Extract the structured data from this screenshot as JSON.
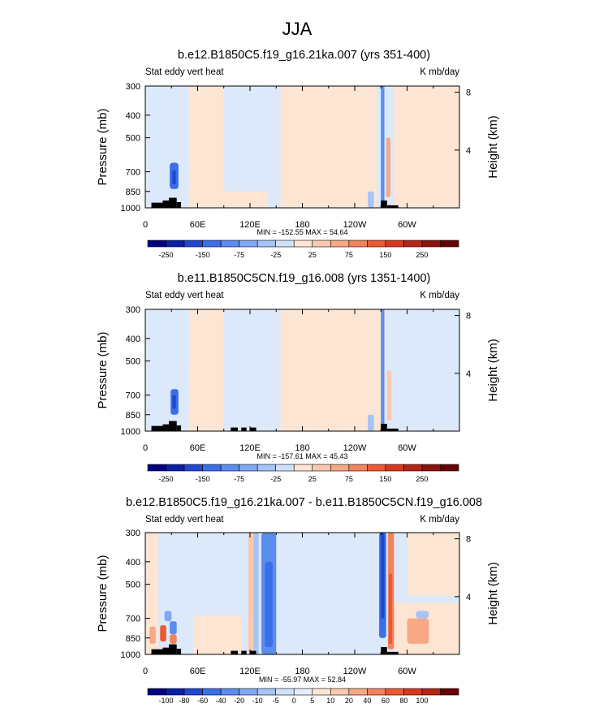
{
  "figure": {
    "title": "JJA"
  },
  "x_ticks": [
    "0",
    "60E",
    "120E",
    "180",
    "120W",
    "60W"
  ],
  "p_ticks": [
    "300",
    "400",
    "500",
    "700",
    "850",
    "1000"
  ],
  "h_ticks": [
    "8",
    "4"
  ],
  "colors": {
    "bg_above_25": "#fde5d3",
    "bg_below_25": "#dce9fb",
    "land": "#000000"
  },
  "chart_data": [
    {
      "type": "heatmap",
      "title": "b.e12.B1850C5.f19_g16.21ka.007 (yrs 351-400)",
      "left_label": "Stat eddy vert heat",
      "right_label": "K mb/day",
      "ylabel": "Pressure (mb)",
      "ylabel_right": "Height (km)",
      "xlim": [
        0,
        360
      ],
      "plim": [
        1000,
        300
      ],
      "stats": "MIN = -152.55  MAX =  54.64",
      "colorbar": {
        "labels": [
          "-250",
          "-150",
          "-75",
          "-25",
          "25",
          "75",
          "150",
          "250"
        ],
        "colors": [
          "#00007f",
          "#0a1fa5",
          "#1f48cf",
          "#3a6fe8",
          "#5b8df0",
          "#7fa8f5",
          "#a6c4f9",
          "#d0e1fc",
          "#fde5d3",
          "#fbc9ae",
          "#f7a884",
          "#f2845d",
          "#ea5a33",
          "#d53a1f",
          "#b32514",
          "#8c1309",
          "#660000"
        ]
      },
      "features": [
        {
          "x": [
            0,
            50
          ],
          "p": [
            300,
            1000
          ],
          "c": "#dce9fb"
        },
        {
          "x": [
            50,
            90
          ],
          "p": [
            300,
            1000
          ],
          "c": "#fde5d3"
        },
        {
          "x": [
            90,
            140
          ],
          "p": [
            300,
            850
          ],
          "c": "#dce9fb"
        },
        {
          "x": [
            140,
            155
          ],
          "p": [
            300,
            1000
          ],
          "c": "#dce9fb"
        },
        {
          "x": [
            155,
            265
          ],
          "p": [
            300,
            1000
          ],
          "c": "#fde5d3"
        },
        {
          "x": [
            265,
            285
          ],
          "p": [
            300,
            1000
          ],
          "c": "#dce9fb"
        },
        {
          "x": [
            285,
            360
          ],
          "p": [
            520,
            1000
          ],
          "c": "#fde5d3"
        },
        {
          "x": [
            28,
            38
          ],
          "p": [
            640,
            830
          ],
          "c": "#3a6fe8"
        },
        {
          "x": [
            31,
            35
          ],
          "p": [
            690,
            790
          ],
          "c": "#1f48cf"
        },
        {
          "x": [
            270,
            274
          ],
          "p": [
            300,
            1000
          ],
          "c": "#5b8df0"
        },
        {
          "x": [
            276,
            281
          ],
          "p": [
            500,
            900
          ],
          "c": "#f7a884"
        },
        {
          "x": [
            255,
            262
          ],
          "p": [
            850,
            1000
          ],
          "c": "#a6c4f9"
        }
      ],
      "land": [
        {
          "x": [
            7,
            20
          ],
          "p": [
            950,
            1000
          ]
        },
        {
          "x": [
            20,
            27
          ],
          "p": [
            930,
            1000
          ]
        },
        {
          "x": [
            27,
            36
          ],
          "p": [
            905,
            1000
          ]
        },
        {
          "x": [
            36,
            41
          ],
          "p": [
            945,
            1000
          ]
        },
        {
          "x": [
            270,
            277
          ],
          "p": [
            930,
            1000
          ]
        },
        {
          "x": [
            277,
            290
          ],
          "p": [
            975,
            1000
          ]
        }
      ]
    },
    {
      "type": "heatmap",
      "title": "b.e11.B1850C5CN.f19_g16.008 (yrs 1351-1400)",
      "left_label": "Stat eddy vert heat",
      "right_label": "K mb/day",
      "ylabel": "Pressure (mb)",
      "ylabel_right": "Height (km)",
      "xlim": [
        0,
        360
      ],
      "plim": [
        1000,
        300
      ],
      "stats": "MIN = -157.61  MAX =  45.43",
      "colorbar": {
        "labels": [
          "-250",
          "-150",
          "-75",
          "-25",
          "25",
          "75",
          "150",
          "250"
        ],
        "colors": [
          "#00007f",
          "#0a1fa5",
          "#1f48cf",
          "#3a6fe8",
          "#5b8df0",
          "#7fa8f5",
          "#a6c4f9",
          "#d0e1fc",
          "#fde5d3",
          "#fbc9ae",
          "#f7a884",
          "#f2845d",
          "#ea5a33",
          "#d53a1f",
          "#b32514",
          "#8c1309",
          "#660000"
        ]
      },
      "features": [
        {
          "x": [
            0,
            50
          ],
          "p": [
            300,
            1000
          ],
          "c": "#dce9fb"
        },
        {
          "x": [
            50,
            90
          ],
          "p": [
            500,
            1000
          ],
          "c": "#fde5d3"
        },
        {
          "x": [
            90,
            140
          ],
          "p": [
            300,
            1000
          ],
          "c": "#dce9fb"
        },
        {
          "x": [
            140,
            155
          ],
          "p": [
            300,
            1000
          ],
          "c": "#dce9fb"
        },
        {
          "x": [
            155,
            270
          ],
          "p": [
            300,
            1000
          ],
          "c": "#fde5d3"
        },
        {
          "x": [
            275,
            360
          ],
          "p": [
            300,
            1000
          ],
          "c": "#dce9fb"
        },
        {
          "x": [
            29,
            38
          ],
          "p": [
            660,
            850
          ],
          "c": "#3a6fe8"
        },
        {
          "x": [
            31,
            35
          ],
          "p": [
            700,
            800
          ],
          "c": "#1f48cf"
        },
        {
          "x": [
            270,
            274
          ],
          "p": [
            300,
            1000
          ],
          "c": "#5b8df0"
        },
        {
          "x": [
            277,
            282
          ],
          "p": [
            550,
            900
          ],
          "c": "#fbc9ae"
        },
        {
          "x": [
            255,
            262
          ],
          "p": [
            850,
            1000
          ],
          "c": "#a6c4f9"
        }
      ],
      "land": [
        {
          "x": [
            7,
            20
          ],
          "p": [
            950,
            1000
          ]
        },
        {
          "x": [
            20,
            27
          ],
          "p": [
            935,
            1000
          ]
        },
        {
          "x": [
            27,
            36
          ],
          "p": [
            905,
            1000
          ]
        },
        {
          "x": [
            36,
            41
          ],
          "p": [
            945,
            1000
          ]
        },
        {
          "x": [
            98,
            106
          ],
          "p": [
            965,
            1000
          ]
        },
        {
          "x": [
            110,
            116
          ],
          "p": [
            965,
            1000
          ]
        },
        {
          "x": [
            120,
            127
          ],
          "p": [
            965,
            1000
          ]
        },
        {
          "x": [
            270,
            277
          ],
          "p": [
            930,
            1000
          ]
        },
        {
          "x": [
            277,
            290
          ],
          "p": [
            975,
            1000
          ]
        }
      ]
    },
    {
      "type": "heatmap",
      "title": "b.e12.B1850C5.f19_g16.21ka.007 - b.e11.B1850C5CN.f19_g16.008",
      "left_label": "Stat eddy vert heat",
      "right_label": "K mb/day",
      "ylabel": "Pressure (mb)",
      "ylabel_right": "Height (km)",
      "xlim": [
        0,
        360
      ],
      "plim": [
        1000,
        300
      ],
      "stats": "MIN = -55.97  MAX =  52.84",
      "colorbar": {
        "labels": [
          "-100",
          "-80",
          "-60",
          "-40",
          "-20",
          "-10",
          "-5",
          "0",
          "5",
          "10",
          "20",
          "40",
          "60",
          "80",
          "100"
        ],
        "colors": [
          "#00007f",
          "#0a1fa5",
          "#1f48cf",
          "#3a6fe8",
          "#5b8df0",
          "#7fa8f5",
          "#a6c4f9",
          "#d0e1fc",
          "#e4eefc",
          "#fde5d3",
          "#fbc9ae",
          "#f7a884",
          "#f2845d",
          "#ea5a33",
          "#d53a1f",
          "#b32514",
          "#660000"
        ]
      },
      "features": [
        {
          "x": [
            0,
            15
          ],
          "p": [
            300,
            1000
          ],
          "c": "#fde5d3"
        },
        {
          "x": [
            15,
            55
          ],
          "p": [
            300,
            650
          ],
          "c": "#dce9fb"
        },
        {
          "x": [
            55,
            110
          ],
          "p": [
            680,
            1000
          ],
          "c": "#fde5d3"
        },
        {
          "x": [
            110,
            155
          ],
          "p": [
            300,
            1000
          ],
          "c": "#dce9fb"
        },
        {
          "x": [
            155,
            265
          ],
          "p": [
            300,
            1000
          ],
          "c": "#dce9fb"
        },
        {
          "x": [
            300,
            360
          ],
          "p": [
            300,
            560
          ],
          "c": "#fde5d3"
        },
        {
          "x": [
            285,
            360
          ],
          "p": [
            600,
            1000
          ],
          "c": "#fde5d3"
        },
        {
          "x": [
            118,
            124
          ],
          "p": [
            300,
            1000
          ],
          "c": "#fbc9ae"
        },
        {
          "x": [
            124,
            130
          ],
          "p": [
            300,
            1000
          ],
          "c": "#a6c4f9"
        },
        {
          "x": [
            133,
            150
          ],
          "p": [
            300,
            1000
          ],
          "c": "#5b8df0"
        },
        {
          "x": [
            137,
            146
          ],
          "p": [
            400,
            930
          ],
          "c": "#3a6fe8"
        },
        {
          "x": [
            268,
            276
          ],
          "p": [
            300,
            850
          ],
          "c": "#3a6fe8"
        },
        {
          "x": [
            270,
            274
          ],
          "p": [
            300,
            700
          ],
          "c": "#1f48cf"
        },
        {
          "x": [
            278,
            285
          ],
          "p": [
            300,
            950
          ],
          "c": "#f2845d"
        },
        {
          "x": [
            279,
            283
          ],
          "p": [
            450,
            900
          ],
          "c": "#ea5a33"
        },
        {
          "x": [
            5,
            12
          ],
          "p": [
            760,
            900
          ],
          "c": "#f7a884"
        },
        {
          "x": [
            17,
            24
          ],
          "p": [
            750,
            880
          ],
          "c": "#ea5a33"
        },
        {
          "x": [
            28,
            36
          ],
          "p": [
            720,
            820
          ],
          "c": "#5b8df0"
        },
        {
          "x": [
            28,
            36
          ],
          "p": [
            820,
            900
          ],
          "c": "#f2845d"
        },
        {
          "x": [
            22,
            30
          ],
          "p": [
            650,
            720
          ],
          "c": "#7fa8f5"
        },
        {
          "x": [
            300,
            325
          ],
          "p": [
            700,
            900
          ],
          "c": "#f7a884"
        },
        {
          "x": [
            310,
            325
          ],
          "p": [
            650,
            700
          ],
          "c": "#a6c4f9"
        }
      ],
      "land": [
        {
          "x": [
            7,
            20
          ],
          "p": [
            950,
            1000
          ]
        },
        {
          "x": [
            20,
            27
          ],
          "p": [
            935,
            1000
          ]
        },
        {
          "x": [
            27,
            36
          ],
          "p": [
            905,
            1000
          ]
        },
        {
          "x": [
            36,
            41
          ],
          "p": [
            945,
            1000
          ]
        },
        {
          "x": [
            98,
            106
          ],
          "p": [
            965,
            1000
          ]
        },
        {
          "x": [
            110,
            116
          ],
          "p": [
            965,
            1000
          ]
        },
        {
          "x": [
            120,
            127
          ],
          "p": [
            965,
            1000
          ]
        },
        {
          "x": [
            270,
            277
          ],
          "p": [
            930,
            1000
          ]
        },
        {
          "x": [
            277,
            290
          ],
          "p": [
            975,
            1000
          ]
        }
      ]
    }
  ]
}
